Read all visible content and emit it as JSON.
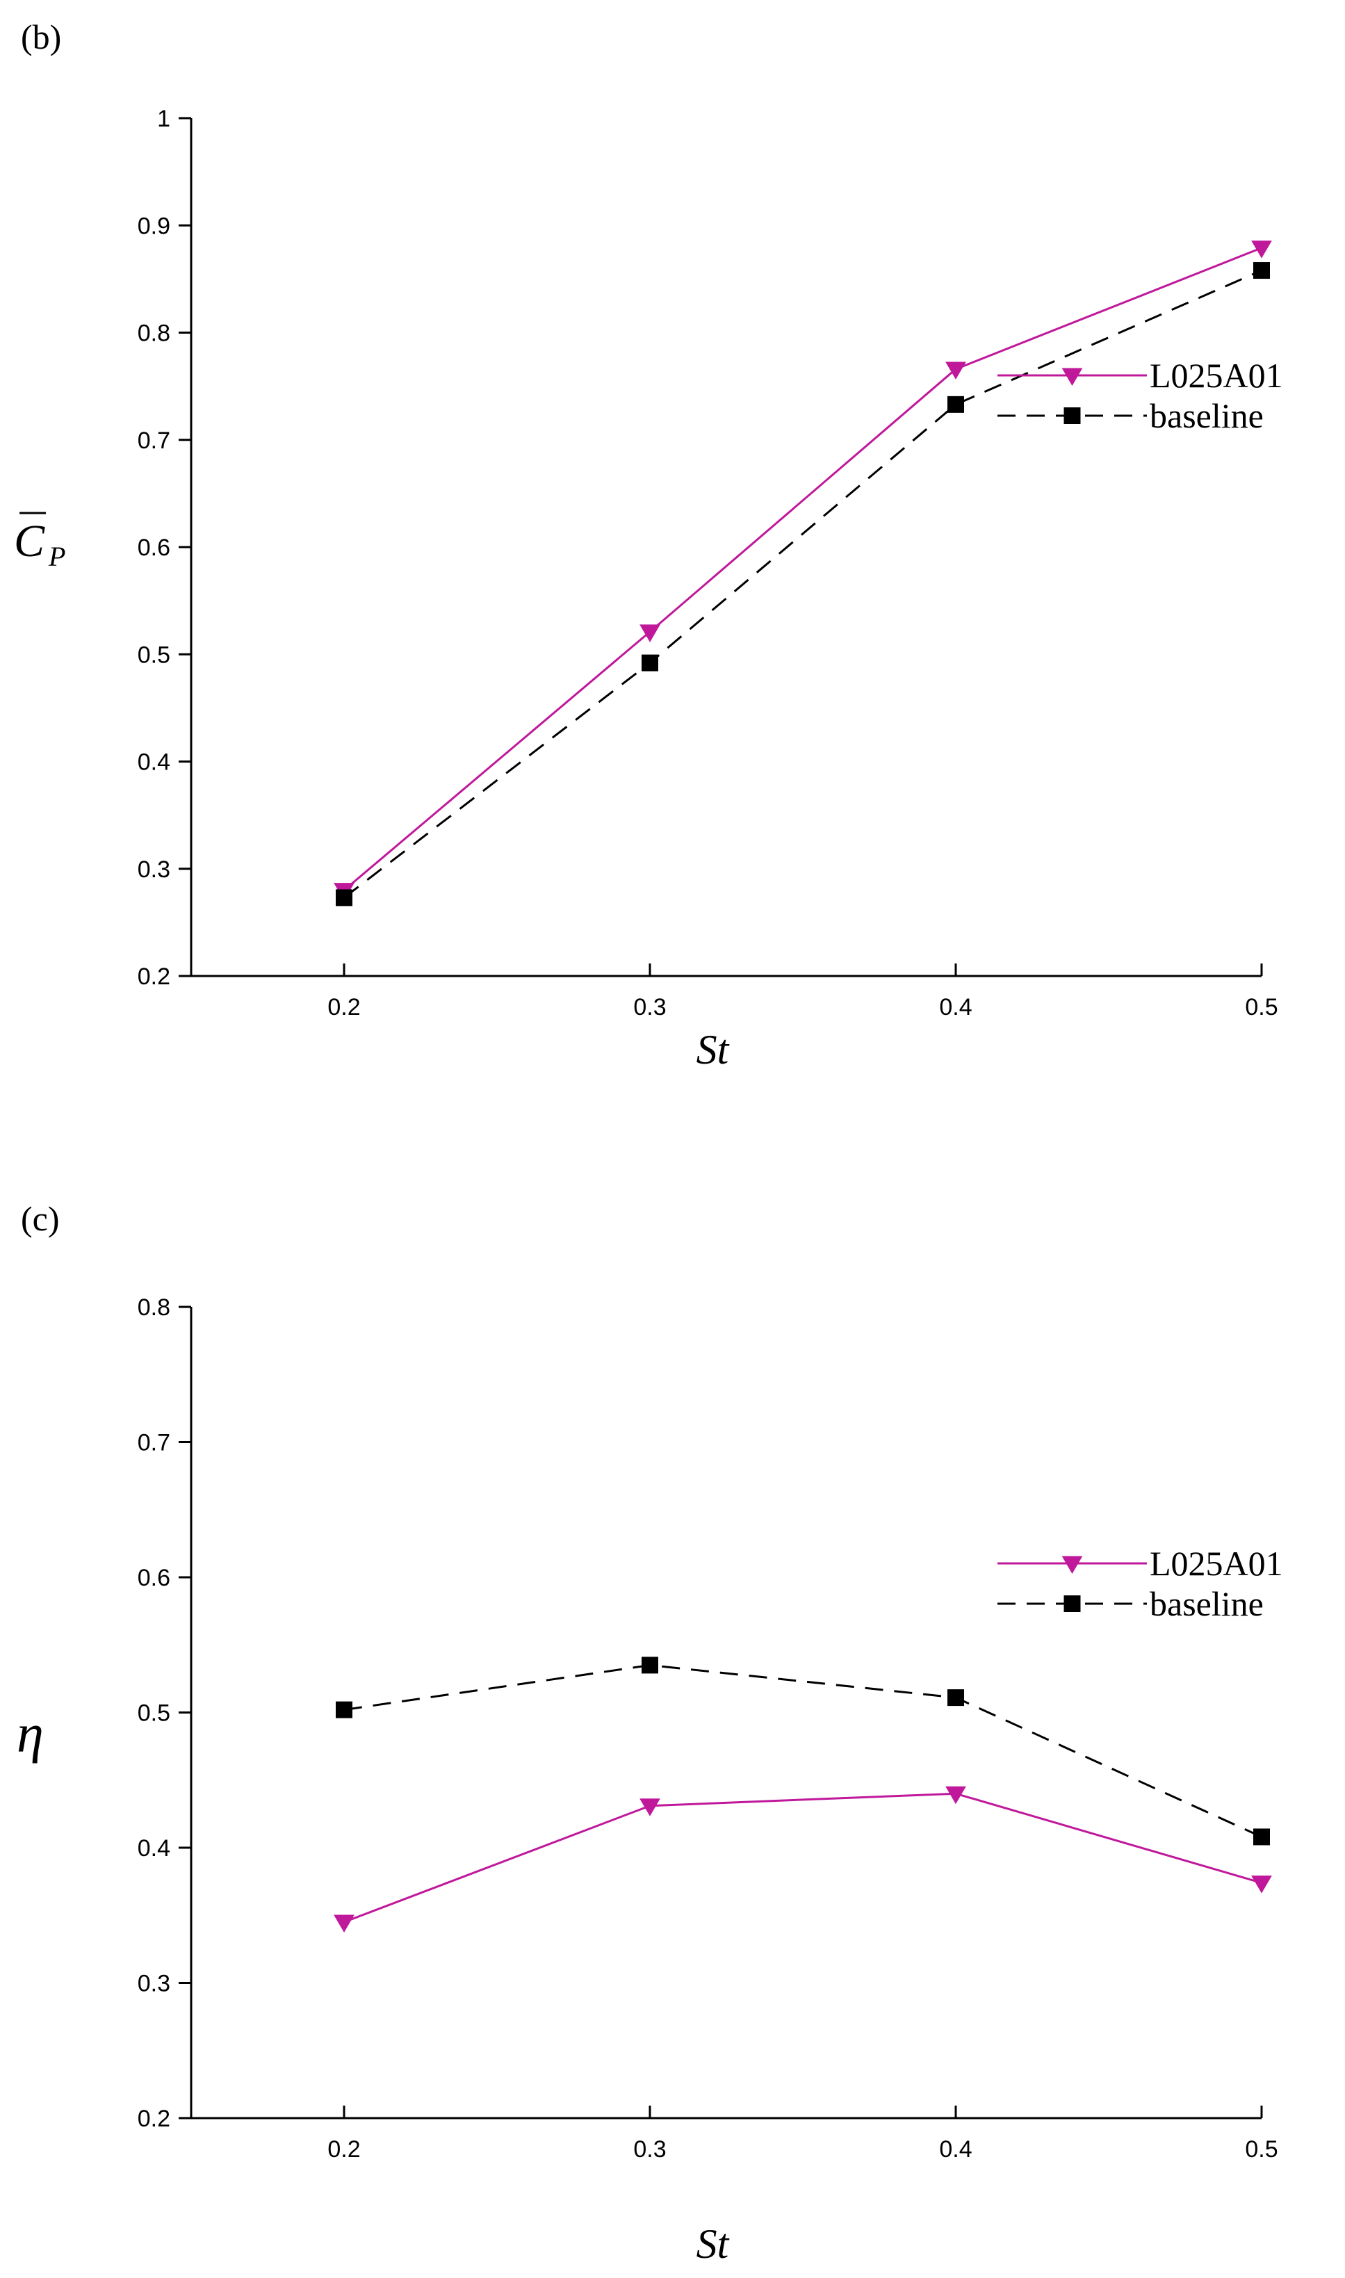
{
  "chart_data": [
    {
      "type": "line",
      "panel_label": "(b)",
      "xlabel": "St",
      "ylabel_main": "C",
      "ylabel_sub": "P",
      "x": [
        0.2,
        0.3,
        0.4,
        0.5
      ],
      "xticks": [
        "0.2",
        "0.3",
        "0.4",
        "0.5"
      ],
      "yticks": [
        "0.2",
        "0.3",
        "0.4",
        "0.5",
        "0.6",
        "0.7",
        "0.8",
        "0.9",
        "1"
      ],
      "xlim": [
        0.15,
        0.5
      ],
      "ylim": [
        0.2,
        1.0
      ],
      "grid": false,
      "legend_position": "right",
      "series": [
        {
          "name": "L025A01",
          "values": [
            0.28,
            0.521,
            0.766,
            0.879
          ],
          "color": "#c0189b",
          "marker": "triangle-down",
          "dash": "solid"
        },
        {
          "name": "baseline",
          "values": [
            0.273,
            0.492,
            0.733,
            0.858
          ],
          "color": "#000000",
          "marker": "square",
          "dash": "dashed"
        }
      ]
    },
    {
      "type": "line",
      "panel_label": "(c)",
      "xlabel": "St",
      "ylabel_main": "η",
      "ylabel_sub": "",
      "x": [
        0.2,
        0.3,
        0.4,
        0.5
      ],
      "xticks": [
        "0.2",
        "0.3",
        "0.4",
        "0.5"
      ],
      "yticks": [
        "0.2",
        "0.3",
        "0.4",
        "0.5",
        "0.6",
        "0.7",
        "0.8"
      ],
      "xlim": [
        0.15,
        0.5
      ],
      "ylim": [
        0.2,
        0.8
      ],
      "grid": false,
      "legend_position": "right",
      "series": [
        {
          "name": "L025A01",
          "values": [
            0.345,
            0.431,
            0.44,
            0.374
          ],
          "color": "#c0189b",
          "marker": "triangle-down",
          "dash": "solid"
        },
        {
          "name": "baseline",
          "values": [
            0.502,
            0.535,
            0.511,
            0.408
          ],
          "color": "#000000",
          "marker": "square",
          "dash": "dashed"
        }
      ]
    }
  ]
}
